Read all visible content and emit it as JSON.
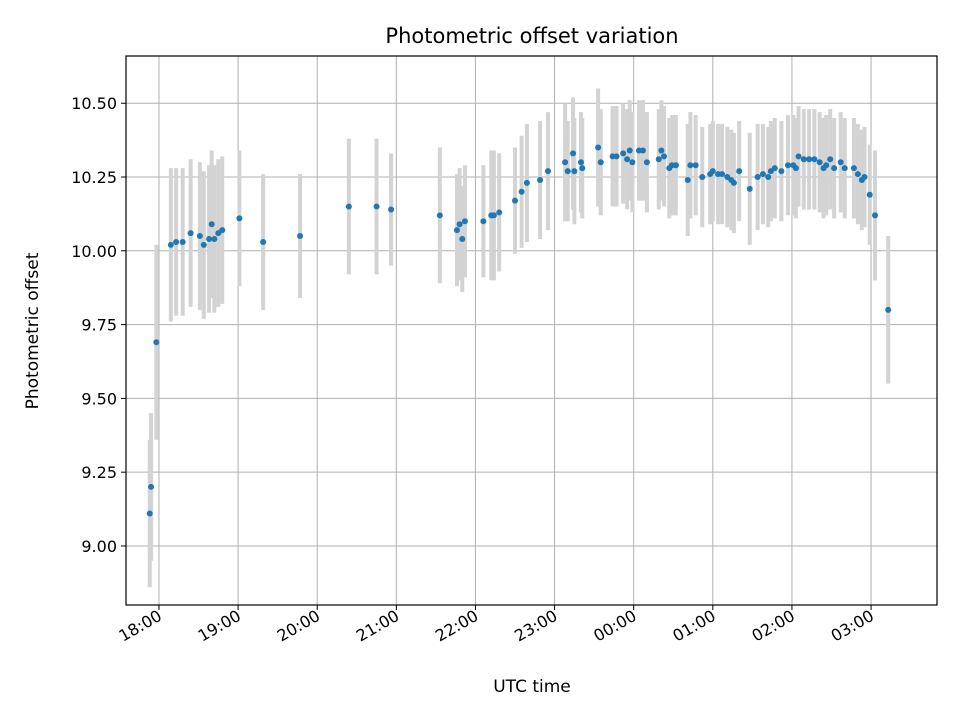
{
  "chart_data": {
    "type": "scatter",
    "title": "Photometric offset variation",
    "xlabel": "UTC time",
    "ylabel": "Photometric offset",
    "x_axis_type": "time",
    "xlim": [
      "17:35",
      "03:50"
    ],
    "ylim": [
      8.8,
      10.66
    ],
    "grid": true,
    "colors": {
      "point": "#1f77b4",
      "errorbar": "#d3d3d3",
      "grid": "#b0b0b0"
    },
    "x_ticks": [
      "18:00",
      "19:00",
      "20:00",
      "21:00",
      "22:00",
      "23:00",
      "00:00",
      "01:00",
      "02:00",
      "03:00"
    ],
    "y_ticks": [
      "9.00",
      "9.25",
      "9.50",
      "9.75",
      "10.00",
      "10.25",
      "10.50"
    ],
    "y_tick_values": [
      9.0,
      9.25,
      9.5,
      9.75,
      10.0,
      10.25,
      10.5
    ],
    "series": [
      {
        "points": [
          {
            "t": "17:53",
            "y": 9.11,
            "err": 0.25
          },
          {
            "t": "17:54",
            "y": 9.2,
            "err": 0.25
          },
          {
            "t": "17:58",
            "y": 9.69,
            "err": 0.33
          },
          {
            "t": "18:09",
            "y": 10.02,
            "err": 0.26
          },
          {
            "t": "18:13",
            "y": 10.03,
            "err": 0.25
          },
          {
            "t": "18:18",
            "y": 10.03,
            "err": 0.25
          },
          {
            "t": "18:24",
            "y": 10.06,
            "err": 0.25
          },
          {
            "t": "18:31",
            "y": 10.05,
            "err": 0.25
          },
          {
            "t": "18:34",
            "y": 10.02,
            "err": 0.25
          },
          {
            "t": "18:38",
            "y": 10.04,
            "err": 0.25
          },
          {
            "t": "18:40",
            "y": 10.09,
            "err": 0.25
          },
          {
            "t": "18:42",
            "y": 10.04,
            "err": 0.25
          },
          {
            "t": "18:45",
            "y": 10.06,
            "err": 0.25
          },
          {
            "t": "18:48",
            "y": 10.07,
            "err": 0.25
          },
          {
            "t": "19:01",
            "y": 10.11,
            "err": 0.23
          },
          {
            "t": "19:19",
            "y": 10.03,
            "err": 0.23
          },
          {
            "t": "19:47",
            "y": 10.05,
            "err": 0.21
          },
          {
            "t": "20:24",
            "y": 10.15,
            "err": 0.23
          },
          {
            "t": "20:45",
            "y": 10.15,
            "err": 0.23
          },
          {
            "t": "20:56",
            "y": 10.14,
            "err": 0.19
          },
          {
            "t": "21:33",
            "y": 10.12,
            "err": 0.23
          },
          {
            "t": "21:46",
            "y": 10.07,
            "err": 0.19
          },
          {
            "t": "21:48",
            "y": 10.09,
            "err": 0.19
          },
          {
            "t": "21:50",
            "y": 10.04,
            "err": 0.18
          },
          {
            "t": "21:52",
            "y": 10.1,
            "err": 0.19
          },
          {
            "t": "22:06",
            "y": 10.1,
            "err": 0.19
          },
          {
            "t": "22:12",
            "y": 10.12,
            "err": 0.22
          },
          {
            "t": "22:14",
            "y": 10.12,
            "err": 0.22
          },
          {
            "t": "22:18",
            "y": 10.13,
            "err": 0.2
          },
          {
            "t": "22:30",
            "y": 10.17,
            "err": 0.18
          },
          {
            "t": "22:35",
            "y": 10.2,
            "err": 0.19
          },
          {
            "t": "22:39",
            "y": 10.23,
            "err": 0.2
          },
          {
            "t": "22:49",
            "y": 10.24,
            "err": 0.2
          },
          {
            "t": "22:55",
            "y": 10.27,
            "err": 0.2
          },
          {
            "t": "23:08",
            "y": 10.3,
            "err": 0.2
          },
          {
            "t": "23:10",
            "y": 10.27,
            "err": 0.17
          },
          {
            "t": "23:14",
            "y": 10.33,
            "err": 0.19
          },
          {
            "t": "23:15",
            "y": 10.27,
            "err": 0.18
          },
          {
            "t": "23:20",
            "y": 10.3,
            "err": 0.17
          },
          {
            "t": "23:21",
            "y": 10.28,
            "err": 0.17
          },
          {
            "t": "23:33",
            "y": 10.35,
            "err": 0.2
          },
          {
            "t": "23:35",
            "y": 10.3,
            "err": 0.18
          },
          {
            "t": "23:44",
            "y": 10.32,
            "err": 0.17
          },
          {
            "t": "23:47",
            "y": 10.32,
            "err": 0.17
          },
          {
            "t": "23:52",
            "y": 10.33,
            "err": 0.17
          },
          {
            "t": "23:55",
            "y": 10.31,
            "err": 0.17
          },
          {
            "t": "23:57",
            "y": 10.34,
            "err": 0.17
          },
          {
            "t": "23:59",
            "y": 10.3,
            "err": 0.17
          },
          {
            "t": "00:04",
            "y": 10.34,
            "err": 0.17
          },
          {
            "t": "00:07",
            "y": 10.34,
            "err": 0.17
          },
          {
            "t": "00:10",
            "y": 10.3,
            "err": 0.17
          },
          {
            "t": "00:19",
            "y": 10.31,
            "err": 0.17
          },
          {
            "t": "00:21",
            "y": 10.34,
            "err": 0.17
          },
          {
            "t": "00:23",
            "y": 10.32,
            "err": 0.17
          },
          {
            "t": "00:27",
            "y": 10.28,
            "err": 0.17
          },
          {
            "t": "00:29",
            "y": 10.29,
            "err": 0.17
          },
          {
            "t": "00:32",
            "y": 10.29,
            "err": 0.17
          },
          {
            "t": "00:41",
            "y": 10.24,
            "err": 0.19
          },
          {
            "t": "00:43",
            "y": 10.29,
            "err": 0.18
          },
          {
            "t": "00:47",
            "y": 10.29,
            "err": 0.17
          },
          {
            "t": "00:52",
            "y": 10.25,
            "err": 0.17
          },
          {
            "t": "00:58",
            "y": 10.26,
            "err": 0.17
          },
          {
            "t": "01:00",
            "y": 10.27,
            "err": 0.17
          },
          {
            "t": "01:04",
            "y": 10.26,
            "err": 0.17
          },
          {
            "t": "01:07",
            "y": 10.26,
            "err": 0.17
          },
          {
            "t": "01:11",
            "y": 10.25,
            "err": 0.17
          },
          {
            "t": "01:14",
            "y": 10.24,
            "err": 0.17
          },
          {
            "t": "01:16",
            "y": 10.23,
            "err": 0.17
          },
          {
            "t": "01:20",
            "y": 10.27,
            "err": 0.17
          },
          {
            "t": "01:28",
            "y": 10.21,
            "err": 0.19
          },
          {
            "t": "01:34",
            "y": 10.25,
            "err": 0.18
          },
          {
            "t": "01:38",
            "y": 10.26,
            "err": 0.17
          },
          {
            "t": "01:42",
            "y": 10.25,
            "err": 0.17
          },
          {
            "t": "01:44",
            "y": 10.27,
            "err": 0.17
          },
          {
            "t": "01:47",
            "y": 10.28,
            "err": 0.17
          },
          {
            "t": "01:52",
            "y": 10.27,
            "err": 0.17
          },
          {
            "t": "01:57",
            "y": 10.29,
            "err": 0.17
          },
          {
            "t": "02:01",
            "y": 10.29,
            "err": 0.17
          },
          {
            "t": "02:03",
            "y": 10.28,
            "err": 0.17
          },
          {
            "t": "02:05",
            "y": 10.32,
            "err": 0.17
          },
          {
            "t": "02:09",
            "y": 10.31,
            "err": 0.17
          },
          {
            "t": "02:13",
            "y": 10.31,
            "err": 0.17
          },
          {
            "t": "02:17",
            "y": 10.31,
            "err": 0.17
          },
          {
            "t": "02:21",
            "y": 10.3,
            "err": 0.17
          },
          {
            "t": "02:24",
            "y": 10.28,
            "err": 0.17
          },
          {
            "t": "02:26",
            "y": 10.29,
            "err": 0.17
          },
          {
            "t": "02:29",
            "y": 10.31,
            "err": 0.17
          },
          {
            "t": "02:32",
            "y": 10.28,
            "err": 0.17
          },
          {
            "t": "02:37",
            "y": 10.3,
            "err": 0.17
          },
          {
            "t": "02:40",
            "y": 10.28,
            "err": 0.17
          },
          {
            "t": "02:47",
            "y": 10.28,
            "err": 0.17
          },
          {
            "t": "02:50",
            "y": 10.26,
            "err": 0.17
          },
          {
            "t": "02:53",
            "y": 10.24,
            "err": 0.17
          },
          {
            "t": "02:55",
            "y": 10.25,
            "err": 0.17
          },
          {
            "t": "02:59",
            "y": 10.19,
            "err": 0.17
          },
          {
            "t": "03:03",
            "y": 10.12,
            "err": 0.22
          },
          {
            "t": "03:13",
            "y": 9.8,
            "err": 0.25
          }
        ]
      }
    ]
  }
}
